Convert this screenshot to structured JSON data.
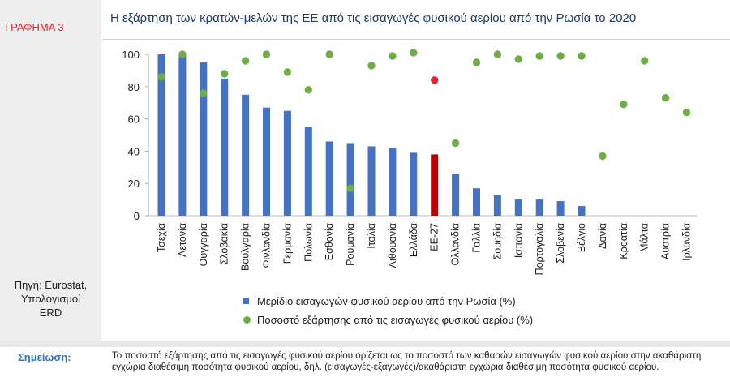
{
  "figure_label": "ΓΡΑΦΗΜΑ 3",
  "source": [
    "Πηγή: Eurostat,",
    "Υπολογισμοί",
    "ERD"
  ],
  "note_label": "Σημείωση:",
  "note_text": "Το ποσοστό εξάρτησης από τις εισαγωγές φυσικού αερίου ορίζεται ως το ποσοστό των καθαρών εισαγωγών φυσικού αερίου στην ακαθάριστη εγχώρια διαθέσιμη ποσότητα φυσικού αερίου, δηλ. (εισαγωγές-εξαγωγές)/ακαθάριστη εγχώρια διαθέσιμη ποσότητα φυσικού αερίου.",
  "colors": {
    "bar": "#4472c4",
    "bar_highlight": "#c00000",
    "dot": "#70ad47",
    "dot_highlight": "#e8202a",
    "title": "#1f3864"
  },
  "chart_data": {
    "type": "bar",
    "title": "Η εξάρτηση των κρατών-μελών της ΕΕ από τις εισαγωγές φυσικού αερίου από την Ρωσία το 2020",
    "xlabel": "",
    "ylabel": "",
    "ylim": [
      0,
      100
    ],
    "yticks": [
      0,
      20,
      40,
      60,
      80,
      100
    ],
    "grid": false,
    "legend_position": "bottom",
    "highlight": "ΕΕ-27",
    "categories": [
      "Τσεχία",
      "Λετονία",
      "Ουγγαρία",
      "Σλοβακία",
      "Βουλγαρία",
      "Φινλανδία",
      "Γερμανία",
      "Πολωνία",
      "Εσθονία",
      "Ρουμανία",
      "Ιταλία",
      "Λιθουανία",
      "Ελλάδα",
      "ΕΕ-27",
      "Ολλανδία",
      "Γαλλία",
      "Σουηδία",
      "Ισπανία",
      "Πορτογαλία",
      "Σλοβενία",
      "Βέλγιο",
      "Δανία",
      "Κροατία",
      "Μάλτα",
      "Αυστρία",
      "Ιρλανδία"
    ],
    "series": [
      {
        "name": "Μερίδιο εισαγωγών φυσικού αερίου από την Ρωσία (%)",
        "kind": "bar",
        "values": [
          100,
          100,
          95,
          85,
          75,
          67,
          65,
          55,
          46,
          45,
          43,
          42,
          39,
          38,
          26,
          17,
          13,
          10,
          10,
          9,
          6,
          null,
          null,
          null,
          null,
          null
        ]
      },
      {
        "name": "Ποσοστό εξάρτησης από τις εισαγωγές φυσικού αερίου (%)",
        "kind": "scatter",
        "values": [
          86,
          100,
          76,
          88,
          96,
          100,
          89,
          78,
          100,
          17,
          93,
          99,
          101,
          84,
          45,
          95,
          100,
          97,
          99,
          99,
          99,
          37,
          69,
          96,
          73,
          64
        ]
      }
    ]
  }
}
